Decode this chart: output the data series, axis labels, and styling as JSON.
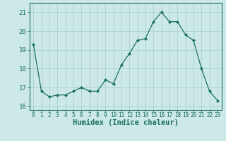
{
  "x": [
    0,
    1,
    2,
    3,
    4,
    5,
    6,
    7,
    8,
    9,
    10,
    11,
    12,
    13,
    14,
    15,
    16,
    17,
    18,
    19,
    20,
    21,
    22,
    23
  ],
  "y": [
    19.3,
    16.8,
    16.5,
    16.6,
    16.6,
    16.8,
    17.0,
    16.8,
    16.8,
    17.4,
    17.2,
    18.2,
    18.8,
    19.5,
    19.6,
    20.5,
    21.0,
    20.5,
    20.5,
    19.8,
    19.5,
    18.0,
    16.8,
    16.3
  ],
  "line_color": "#1a7060",
  "marker": "D",
  "marker_size": 2.0,
  "bg_color": "#cce8e8",
  "grid_major_color": "#aacfcf",
  "grid_minor_color": "#bddada",
  "xlabel": "Humidex (Indice chaleur)",
  "ylim": [
    15.8,
    21.5
  ],
  "yticks": [
    16,
    17,
    18,
    19,
    20,
    21
  ],
  "xticks": [
    0,
    1,
    2,
    3,
    4,
    5,
    6,
    7,
    8,
    9,
    10,
    11,
    12,
    13,
    14,
    15,
    16,
    17,
    18,
    19,
    20,
    21,
    22,
    23
  ],
  "axis_color": "#1a7060",
  "tick_color": "#1a7060",
  "label_color": "#1a7060",
  "xlabel_fontsize": 7.5,
  "xtick_fontsize": 5.5,
  "ytick_fontsize": 6.5
}
